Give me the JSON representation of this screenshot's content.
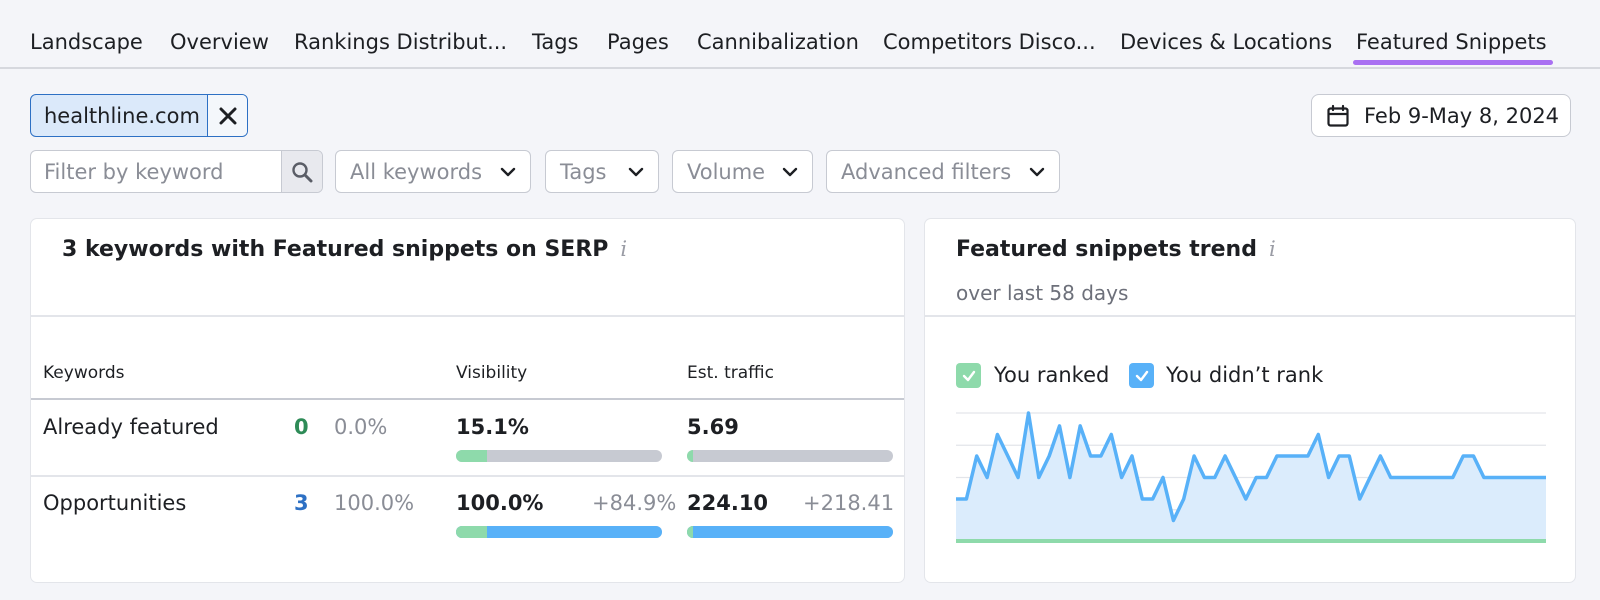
{
  "tabs": [
    "Landscape",
    "Overview",
    "Rankings Distribut...",
    "Tags",
    "Pages",
    "Cannibalization",
    "Competitors Disco...",
    "Devices & Locations",
    "Featured Snippets"
  ],
  "active_tab": "Featured Snippets",
  "domain_chip": {
    "label": "healthline.com"
  },
  "date_range": "Feb 9-May 8, 2024",
  "filters": {
    "keyword_placeholder": "Filter by keyword",
    "dropdowns": [
      "All keywords",
      "Tags",
      "Volume",
      "Advanced filters"
    ]
  },
  "keywords_card": {
    "title": "3 keywords with Featured snippets on SERP",
    "columns": [
      "Keywords",
      "Visibility",
      "Est. traffic"
    ],
    "rows": [
      {
        "label": "Already featured",
        "count": "0",
        "percent": "0.0%",
        "visibility": "15.1%",
        "visibility_delta": "",
        "traffic": "5.69",
        "traffic_delta": "",
        "visibility_green_fill": 0.15,
        "visibility_blue_fill": 0,
        "traffic_green_fill": 0.03,
        "traffic_blue_fill": 0
      },
      {
        "label": "Opportunities",
        "count": "3",
        "percent": "100.0%",
        "visibility": "100.0%",
        "visibility_delta": "+84.9%",
        "traffic": "224.10",
        "traffic_delta": "+218.41",
        "visibility_green_fill": 0.15,
        "visibility_blue_fill": 1.0,
        "traffic_green_fill": 0.03,
        "traffic_blue_fill": 1.0
      }
    ]
  },
  "trend_card": {
    "title": "Featured snippets trend",
    "subtitle": "over last 58 days",
    "legend": [
      "You ranked",
      "You didn’t rank"
    ],
    "colors": {
      "ranked": "#8edaab",
      "didnt_rank": "#58b1f8",
      "accent": "#a970f2"
    }
  },
  "chart_data": {
    "type": "area",
    "series": [
      {
        "name": "You ranked",
        "values": [
          0,
          0,
          0,
          0,
          0,
          0,
          0,
          0,
          0,
          0,
          0,
          0,
          0,
          0,
          0,
          0,
          0,
          0,
          0,
          0,
          0,
          0,
          0,
          0,
          0,
          0,
          0,
          0,
          0,
          0,
          0,
          0,
          0,
          0,
          0,
          0,
          0,
          0,
          0,
          0,
          0,
          0,
          0,
          0,
          0,
          0,
          0,
          0,
          0,
          0,
          0,
          0,
          0,
          0,
          0,
          0,
          0,
          0
        ]
      },
      {
        "name": "You didn’t rank",
        "values": [
          1,
          1,
          2,
          1.5,
          2.5,
          2,
          1.5,
          3,
          1.5,
          2,
          2.7,
          1.5,
          2.7,
          2,
          2,
          2.5,
          1.5,
          2,
          1,
          1,
          1.5,
          0.5,
          1,
          2,
          1.5,
          1.5,
          2,
          1.5,
          1,
          1.5,
          1.5,
          2,
          2,
          2,
          2,
          2.5,
          1.5,
          2,
          2,
          1,
          1.5,
          2,
          1.5,
          1.5,
          1.5,
          1.5,
          1.5,
          1.5,
          1.5,
          2,
          2,
          1.5,
          1.5,
          1.5,
          1.5,
          1.5,
          1.5,
          1.5
        ]
      }
    ],
    "ylim": [
      0,
      3
    ],
    "grid": true
  }
}
